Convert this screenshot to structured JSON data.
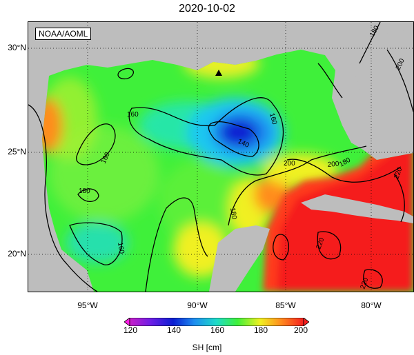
{
  "title": "2020-10-02",
  "credit": "NOAA/AOML",
  "lat_labels": [
    "30°N",
    "25°N",
    "20°N"
  ],
  "lon_labels": [
    "95°W",
    "90°W",
    "85°W",
    "80°W"
  ],
  "contour_labels": [
    "180",
    "200",
    "160",
    "160",
    "160",
    "140",
    "180",
    "200",
    "180",
    "220",
    "180",
    "160",
    "220",
    "220",
    "200"
  ],
  "colorbar": {
    "ticks": [
      "120",
      "140",
      "160",
      "180",
      "200"
    ],
    "label": "SH [cm]",
    "range": [
      120,
      200
    ]
  },
  "colors": {
    "land": "#bdbdbd",
    "deep_blue": "#0a1ed2",
    "cyan": "#1ec8f0",
    "green": "#3ff03a",
    "yellow": "#f0f020",
    "orange": "#ff8c1e",
    "red": "#f51e1e"
  },
  "marker": "triangle-marker"
}
